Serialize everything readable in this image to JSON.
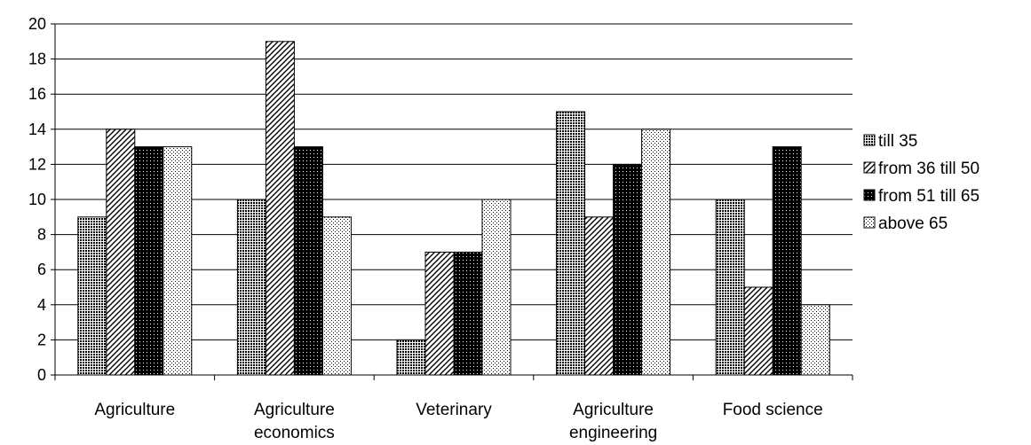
{
  "chart_data": {
    "type": "bar",
    "categories": [
      [
        "Agriculture"
      ],
      [
        "Agriculture",
        "economics"
      ],
      [
        "Veterinary"
      ],
      [
        "Agriculture",
        "engineering"
      ],
      [
        "Food science"
      ]
    ],
    "series": [
      {
        "name": "till 35",
        "values": [
          9,
          10,
          2,
          15,
          10
        ],
        "pattern": "dense-dots"
      },
      {
        "name": "from 36 till 50",
        "values": [
          14,
          19,
          7,
          9,
          5
        ],
        "pattern": "diagonal-hatch"
      },
      {
        "name": "from 51 till 65",
        "values": [
          13,
          13,
          7,
          12,
          13
        ],
        "pattern": "dark-dots"
      },
      {
        "name": "above 65",
        "values": [
          13,
          9,
          10,
          14,
          4
        ],
        "pattern": "light-dots"
      }
    ],
    "ylim": [
      0,
      20
    ],
    "yticks": [
      0,
      2,
      4,
      6,
      8,
      10,
      12,
      14,
      16,
      18,
      20
    ],
    "grid": true,
    "legend_position": "right",
    "colors": {
      "bar_stroke": "#000000",
      "grid": "#000000",
      "background": "#ffffff"
    }
  }
}
